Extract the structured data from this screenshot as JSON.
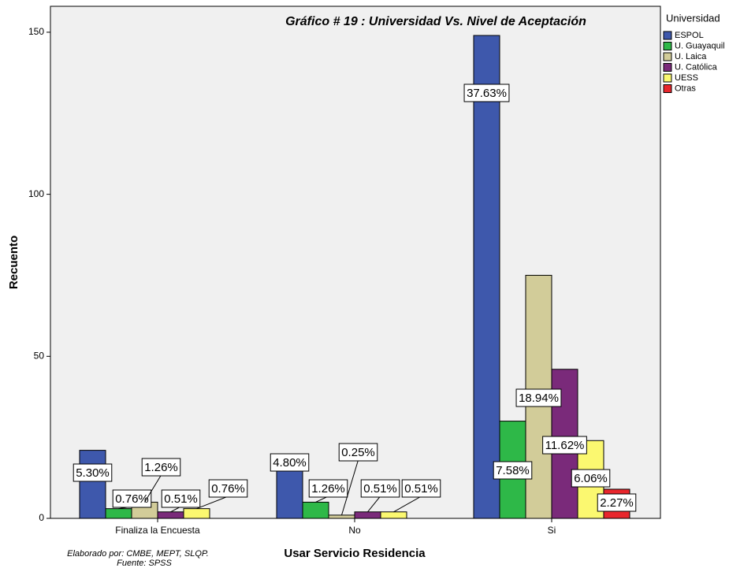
{
  "chart_data": {
    "type": "bar",
    "title": "Gráfico # 19 : Universidad Vs. Nivel de Aceptación",
    "x_label": "Usar Servicio Residencia",
    "y_label": "Recuento",
    "legend_title": "Universidad",
    "footnote": [
      "Elaborado por: CMBE, MEPT, SLQP.",
      "Fuente: SPSS"
    ],
    "categories": [
      "Finaliza la Encuesta",
      "No",
      "Si"
    ],
    "series": [
      {
        "name": "ESPOL",
        "color": "#3e58ac",
        "values": [
          21,
          19,
          149
        ],
        "data_labels": [
          "5.30%",
          "4.80%",
          "37.63%"
        ]
      },
      {
        "name": "U. Guayaquil",
        "color": "#2eb848",
        "values": [
          3,
          5,
          30
        ],
        "data_labels": [
          "0.76%",
          "1.26%",
          "7.58%"
        ]
      },
      {
        "name": "U. Laica",
        "color": "#d2cc99",
        "values": [
          5,
          1,
          75
        ],
        "data_labels": [
          "1.26%",
          "0.25%",
          "18.94%"
        ]
      },
      {
        "name": "U. Católica",
        "color": "#7a2a7a",
        "values": [
          2,
          2,
          46
        ],
        "data_labels": [
          "0.51%",
          "0.51%",
          "11.62%"
        ]
      },
      {
        "name": "UESS",
        "color": "#fbf870",
        "values": [
          3,
          2,
          24
        ],
        "data_labels": [
          "0.76%",
          "0.51%",
          "6.06%"
        ]
      },
      {
        "name": "Otras",
        "color": "#e8262c",
        "values": [
          null,
          null,
          9
        ],
        "data_labels": [
          null,
          null,
          "2.27%"
        ]
      }
    ],
    "ylim": [
      0,
      158
    ],
    "yticks": [
      0,
      50,
      100,
      150
    ],
    "legend": "right"
  }
}
